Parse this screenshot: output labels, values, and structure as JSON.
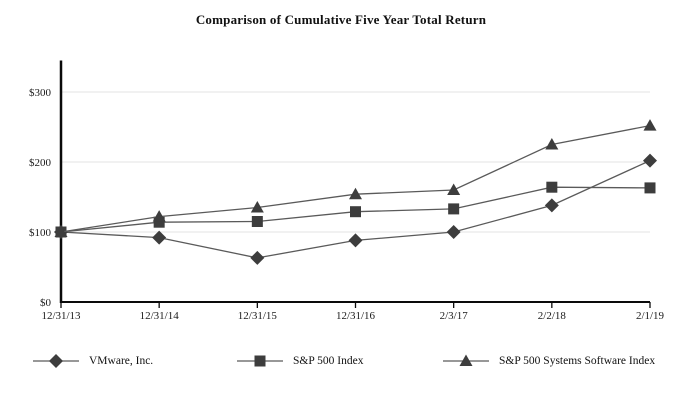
{
  "title": "Comparison of Cumulative Five Year Total Return",
  "colors": {
    "marker": "#3d3d3d",
    "line": "#5a5a5a",
    "grid": "#e3e3e3",
    "axis": "#0a0a0a",
    "tick_text": "#1a1a1a"
  },
  "chart_data": {
    "type": "line",
    "title": "Comparison of Cumulative Five Year Total Return",
    "categories": [
      "12/31/13",
      "12/31/14",
      "12/31/15",
      "12/31/16",
      "2/3/17",
      "2/2/18",
      "2/1/19"
    ],
    "series": [
      {
        "name": "VMware, Inc.",
        "marker": "diamond",
        "values": [
          100,
          92,
          63,
          88,
          100,
          138,
          202
        ]
      },
      {
        "name": "S&P 500 Index",
        "marker": "square",
        "values": [
          100,
          114,
          115,
          129,
          133,
          164,
          163
        ]
      },
      {
        "name": "S&P 500 Systems Software Index",
        "marker": "triangle",
        "values": [
          100,
          122,
          135,
          154,
          160,
          225,
          252
        ]
      }
    ],
    "y_ticks": [
      {
        "label": "$0",
        "value": 0
      },
      {
        "label": "$100",
        "value": 100
      },
      {
        "label": "$200",
        "value": 200
      },
      {
        "label": "$300",
        "value": 300
      }
    ],
    "grid_values": [
      100,
      200,
      300
    ],
    "ylim": [
      0,
      345
    ],
    "xlabel": "",
    "ylabel": "",
    "grid": true,
    "legend_position": "bottom"
  }
}
